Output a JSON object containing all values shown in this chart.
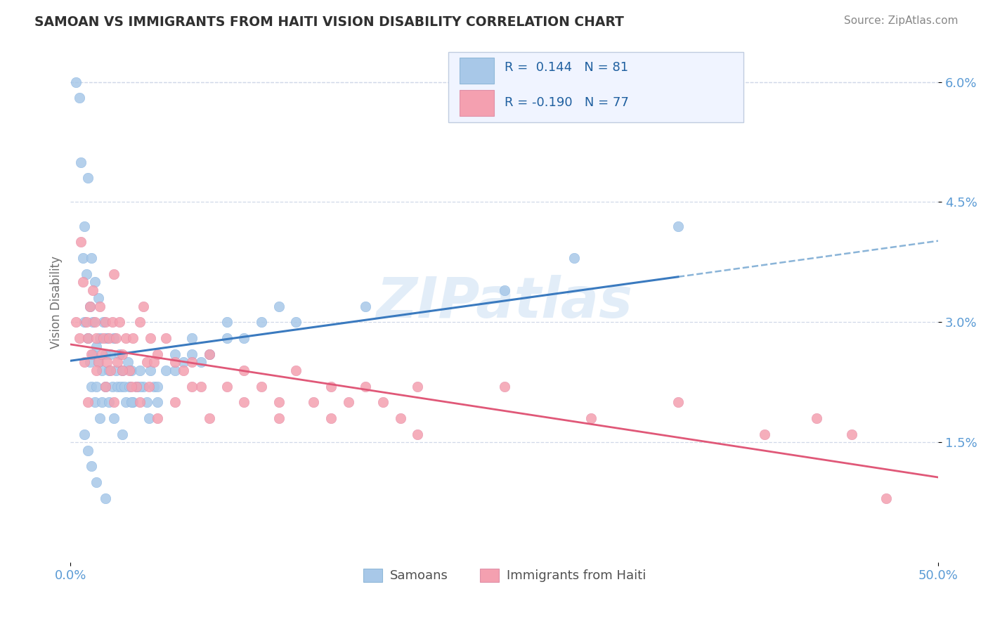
{
  "title": "SAMOAN VS IMMIGRANTS FROM HAITI VISION DISABILITY CORRELATION CHART",
  "source": "Source: ZipAtlas.com",
  "ylabel": "Vision Disability",
  "xlim": [
    0.0,
    0.5
  ],
  "ylim": [
    0.0,
    0.065
  ],
  "watermark": "ZIPatlas",
  "legend_label1": "Samoans",
  "legend_label2": "Immigrants from Haiti",
  "blue_color": "#a8c8e8",
  "pink_color": "#f4a0b0",
  "blue_line_color": "#3a7abf",
  "blue_dash_color": "#8ab4d8",
  "pink_line_color": "#e05878",
  "title_color": "#303030",
  "axis_color": "#5b9bd5",
  "grid_color": "#d0d8e8",
  "background_color": "#ffffff",
  "legend_box_color": "#f0f4ff",
  "legend_border_color": "#c0cce0",
  "samoans_x": [
    0.003,
    0.005,
    0.006,
    0.007,
    0.008,
    0.008,
    0.009,
    0.01,
    0.01,
    0.011,
    0.011,
    0.012,
    0.012,
    0.013,
    0.013,
    0.014,
    0.014,
    0.015,
    0.015,
    0.016,
    0.016,
    0.017,
    0.017,
    0.018,
    0.018,
    0.019,
    0.02,
    0.02,
    0.021,
    0.022,
    0.022,
    0.023,
    0.024,
    0.025,
    0.026,
    0.027,
    0.028,
    0.029,
    0.03,
    0.031,
    0.032,
    0.033,
    0.034,
    0.035,
    0.036,
    0.038,
    0.04,
    0.042,
    0.044,
    0.046,
    0.048,
    0.05,
    0.055,
    0.06,
    0.065,
    0.07,
    0.075,
    0.08,
    0.09,
    0.1,
    0.11,
    0.12,
    0.008,
    0.01,
    0.012,
    0.015,
    0.02,
    0.025,
    0.03,
    0.035,
    0.04,
    0.045,
    0.05,
    0.06,
    0.07,
    0.09,
    0.13,
    0.17,
    0.25,
    0.29,
    0.35
  ],
  "samoans_y": [
    0.06,
    0.058,
    0.05,
    0.038,
    0.042,
    0.03,
    0.036,
    0.048,
    0.028,
    0.025,
    0.032,
    0.022,
    0.038,
    0.03,
    0.026,
    0.02,
    0.035,
    0.027,
    0.022,
    0.033,
    0.025,
    0.018,
    0.028,
    0.024,
    0.02,
    0.03,
    0.026,
    0.022,
    0.028,
    0.024,
    0.02,
    0.026,
    0.022,
    0.028,
    0.024,
    0.022,
    0.026,
    0.022,
    0.024,
    0.022,
    0.02,
    0.025,
    0.022,
    0.024,
    0.02,
    0.022,
    0.024,
    0.022,
    0.02,
    0.024,
    0.022,
    0.022,
    0.024,
    0.026,
    0.025,
    0.028,
    0.025,
    0.026,
    0.028,
    0.028,
    0.03,
    0.032,
    0.016,
    0.014,
    0.012,
    0.01,
    0.008,
    0.018,
    0.016,
    0.02,
    0.022,
    0.018,
    0.02,
    0.024,
    0.026,
    0.03,
    0.03,
    0.032,
    0.034,
    0.038,
    0.042
  ],
  "haiti_x": [
    0.003,
    0.005,
    0.006,
    0.007,
    0.008,
    0.009,
    0.01,
    0.011,
    0.012,
    0.013,
    0.014,
    0.015,
    0.016,
    0.017,
    0.018,
    0.019,
    0.02,
    0.021,
    0.022,
    0.023,
    0.024,
    0.025,
    0.026,
    0.027,
    0.028,
    0.03,
    0.032,
    0.034,
    0.036,
    0.038,
    0.04,
    0.042,
    0.044,
    0.046,
    0.048,
    0.05,
    0.055,
    0.06,
    0.065,
    0.07,
    0.075,
    0.08,
    0.09,
    0.1,
    0.11,
    0.12,
    0.13,
    0.14,
    0.15,
    0.16,
    0.17,
    0.18,
    0.19,
    0.2,
    0.01,
    0.015,
    0.02,
    0.025,
    0.03,
    0.035,
    0.04,
    0.045,
    0.05,
    0.06,
    0.07,
    0.08,
    0.1,
    0.12,
    0.15,
    0.2,
    0.25,
    0.3,
    0.35,
    0.4,
    0.43,
    0.45,
    0.47
  ],
  "haiti_y": [
    0.03,
    0.028,
    0.04,
    0.035,
    0.025,
    0.03,
    0.028,
    0.032,
    0.026,
    0.034,
    0.03,
    0.028,
    0.025,
    0.032,
    0.026,
    0.028,
    0.03,
    0.025,
    0.028,
    0.024,
    0.03,
    0.036,
    0.028,
    0.025,
    0.03,
    0.026,
    0.028,
    0.024,
    0.028,
    0.022,
    0.03,
    0.032,
    0.025,
    0.028,
    0.025,
    0.026,
    0.028,
    0.025,
    0.024,
    0.025,
    0.022,
    0.026,
    0.022,
    0.024,
    0.022,
    0.02,
    0.024,
    0.02,
    0.022,
    0.02,
    0.022,
    0.02,
    0.018,
    0.022,
    0.02,
    0.024,
    0.022,
    0.02,
    0.024,
    0.022,
    0.02,
    0.022,
    0.018,
    0.02,
    0.022,
    0.018,
    0.02,
    0.018,
    0.018,
    0.016,
    0.022,
    0.018,
    0.02,
    0.016,
    0.018,
    0.016,
    0.008
  ]
}
